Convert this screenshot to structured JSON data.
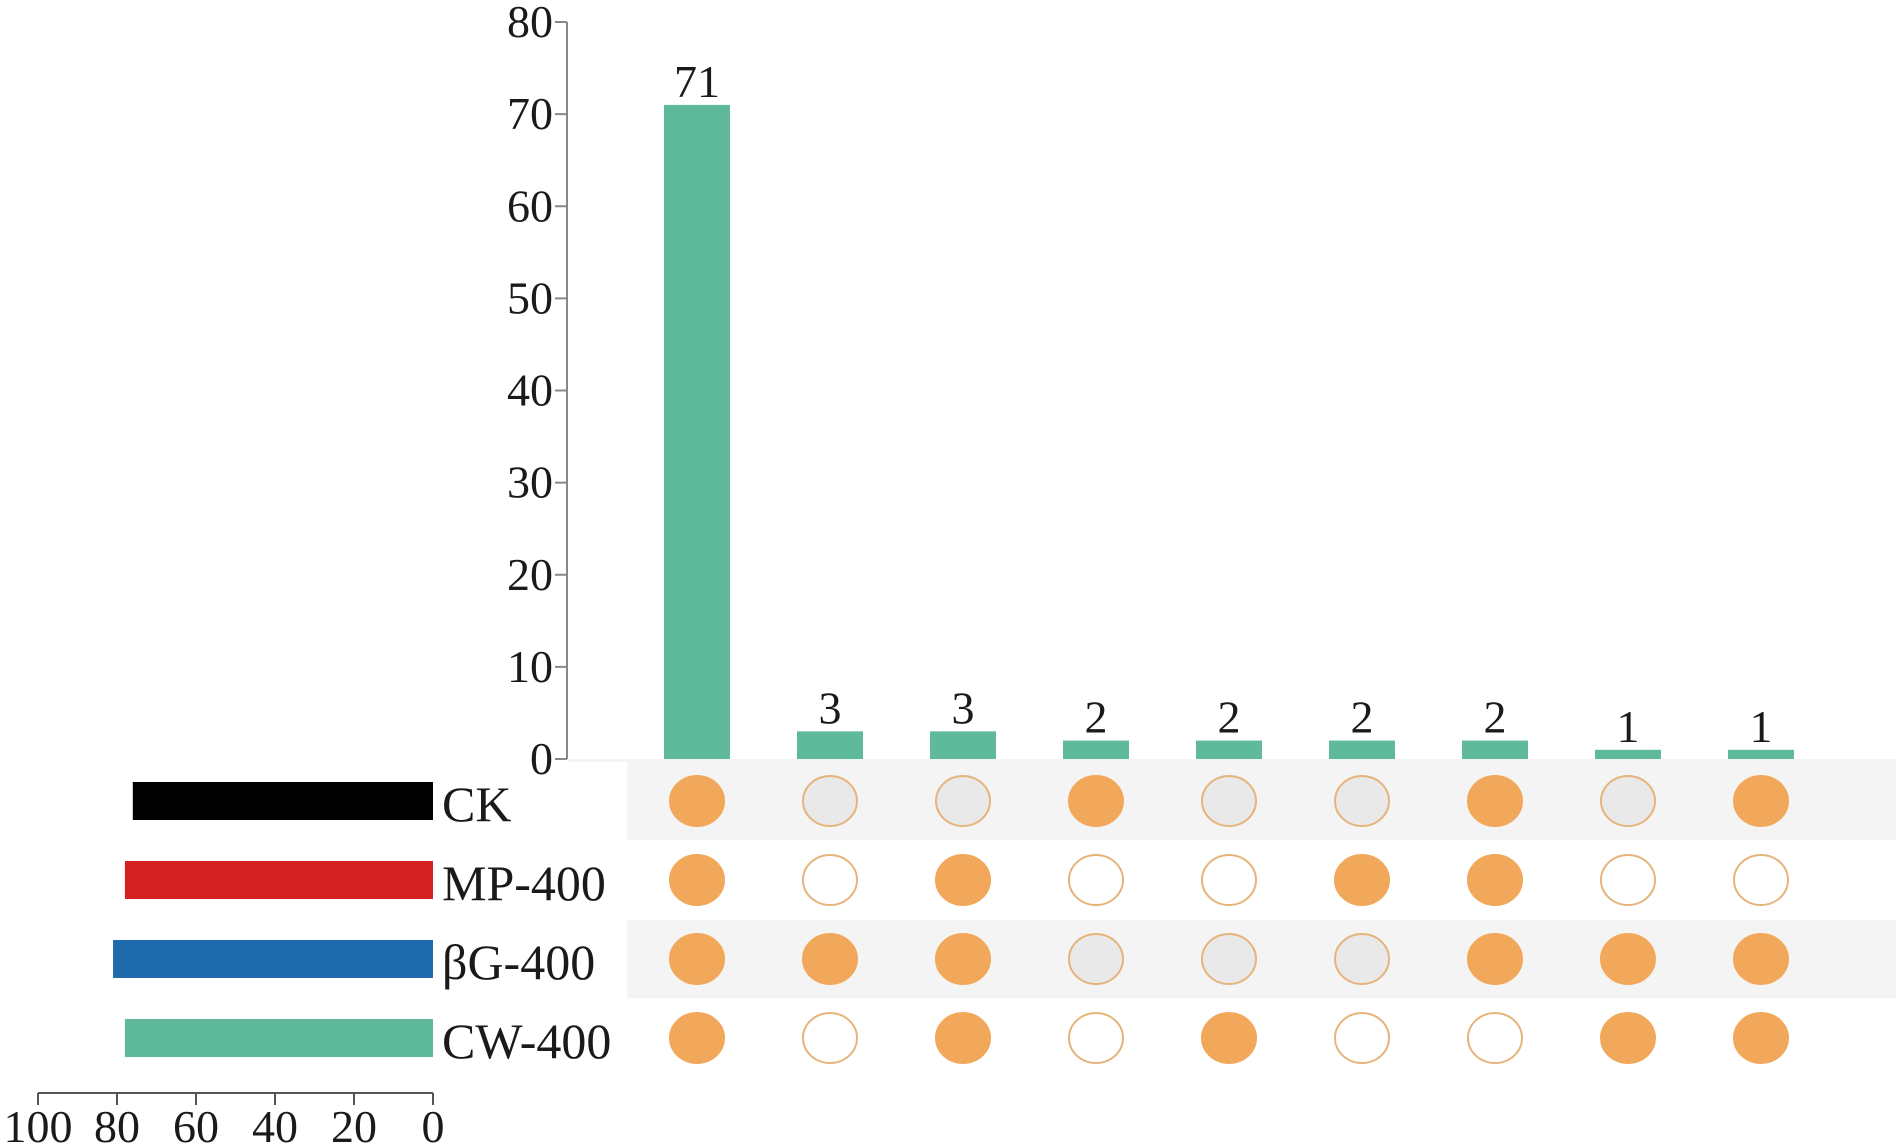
{
  "chart_data": {
    "type": "bar",
    "title": "",
    "xlabel": "",
    "ylabel": "",
    "ylim": [
      0,
      80
    ],
    "yticks": [
      0,
      10,
      20,
      30,
      40,
      50,
      60,
      70,
      80
    ],
    "grid": false,
    "intersection_values": [
      71,
      3,
      3,
      2,
      2,
      2,
      2,
      1,
      1
    ],
    "intersection_labels": [
      "71",
      "3",
      "3",
      "2",
      "2",
      "2",
      "2",
      "1",
      "1"
    ],
    "sets": [
      {
        "name": "CK",
        "size": 76,
        "color": "#000000"
      },
      {
        "name": "MP-400",
        "size": 78,
        "color": "#d32020"
      },
      {
        "name": "βG-400",
        "size": 81,
        "color": "#1f6aac"
      },
      {
        "name": "CW-400",
        "size": 78,
        "color": "#5fba9b"
      }
    ],
    "membership": [
      [
        1,
        0,
        0,
        1,
        0,
        0,
        1,
        0,
        1
      ],
      [
        1,
        0,
        1,
        0,
        0,
        1,
        1,
        0,
        0
      ],
      [
        1,
        1,
        1,
        0,
        0,
        0,
        1,
        1,
        1
      ],
      [
        1,
        0,
        1,
        0,
        1,
        0,
        0,
        1,
        1
      ]
    ],
    "set_size_axis": {
      "range": [
        100,
        0
      ],
      "ticks": [
        100,
        80,
        60,
        40,
        20,
        0
      ]
    },
    "colors": {
      "intersection_bar": "#5fba9b",
      "dot_filled": "#f2a85a",
      "dot_outline": "#e6b37a",
      "row_shade": "#f4f4f4",
      "dot_empty_shaded": "#e9e9e9"
    }
  }
}
